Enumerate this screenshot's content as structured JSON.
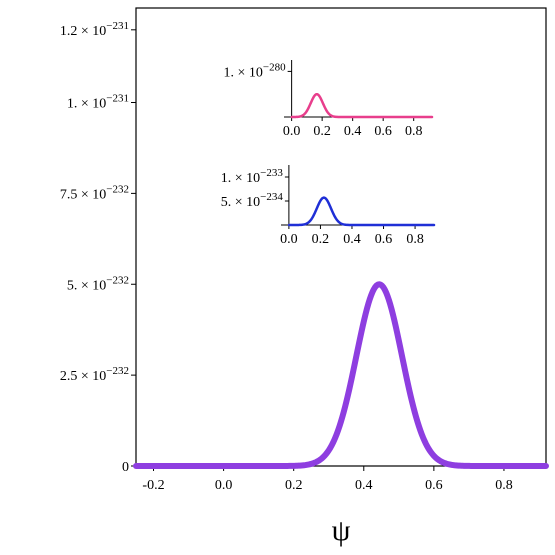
{
  "chart_data": [
    {
      "id": "main",
      "type": "line",
      "xlabel": "ψ",
      "ylabel": "",
      "xlim": [
        -0.25,
        0.92
      ],
      "ylim": [
        0,
        1.26
      ],
      "y_unit_exponent": -231,
      "x_ticks": [
        -0.2,
        0.0,
        0.2,
        0.4,
        0.6,
        0.8
      ],
      "x_tick_labels": [
        "-0.2",
        "0.0",
        "0.2",
        "0.4",
        "0.6",
        "0.8"
      ],
      "y_ticks": [
        0,
        0.25,
        0.5,
        0.75,
        1.0,
        1.2
      ],
      "y_tick_labels": [
        {
          "mantissa": "0",
          "exponent": ""
        },
        {
          "mantissa": "2.5 × 10",
          "exponent": "−232"
        },
        {
          "mantissa": "5. × 10",
          "exponent": "−232"
        },
        {
          "mantissa": "7.5 × 10",
          "exponent": "−232"
        },
        {
          "mantissa": "1. × 10",
          "exponent": "−231"
        },
        {
          "mantissa": "1.2 × 10",
          "exponent": "−231"
        }
      ],
      "series": [
        {
          "color": "#8e3ee0",
          "peak_x": 0.444,
          "peak_y": 0.5,
          "sigma": 0.065
        }
      ]
    },
    {
      "id": "inset-top",
      "type": "line",
      "xlim": [
        -0.05,
        0.92
      ],
      "x_ticks": [
        0.0,
        0.2,
        0.4,
        0.6,
        0.8
      ],
      "x_tick_labels": [
        "0.0",
        "0.2",
        "0.4",
        "0.6",
        "0.8"
      ],
      "ylim": [
        0,
        1.25
      ],
      "y_ticks": [
        1.0
      ],
      "y_tick_labels": [
        {
          "mantissa": "1. × 10",
          "exponent": "−280"
        }
      ],
      "series": [
        {
          "color": "#e83e8c",
          "peak_x": 0.165,
          "peak_y": 0.5,
          "sigma": 0.04
        }
      ]
    },
    {
      "id": "inset-bottom",
      "type": "line",
      "xlim": [
        -0.05,
        0.92
      ],
      "x_ticks": [
        0.0,
        0.2,
        0.4,
        0.6,
        0.8
      ],
      "x_tick_labels": [
        "0.0",
        "0.2",
        "0.4",
        "0.6",
        "0.8"
      ],
      "ylim": [
        0,
        1.25
      ],
      "y_ticks": [
        0.5,
        1.0
      ],
      "y_tick_labels": [
        {
          "mantissa": "5. × 10",
          "exponent": "−234"
        },
        {
          "mantissa": "1. × 10",
          "exponent": "−233"
        }
      ],
      "series": [
        {
          "color": "#1f2fd6",
          "peak_x": 0.222,
          "peak_y": 0.57,
          "sigma": 0.045
        }
      ]
    }
  ]
}
